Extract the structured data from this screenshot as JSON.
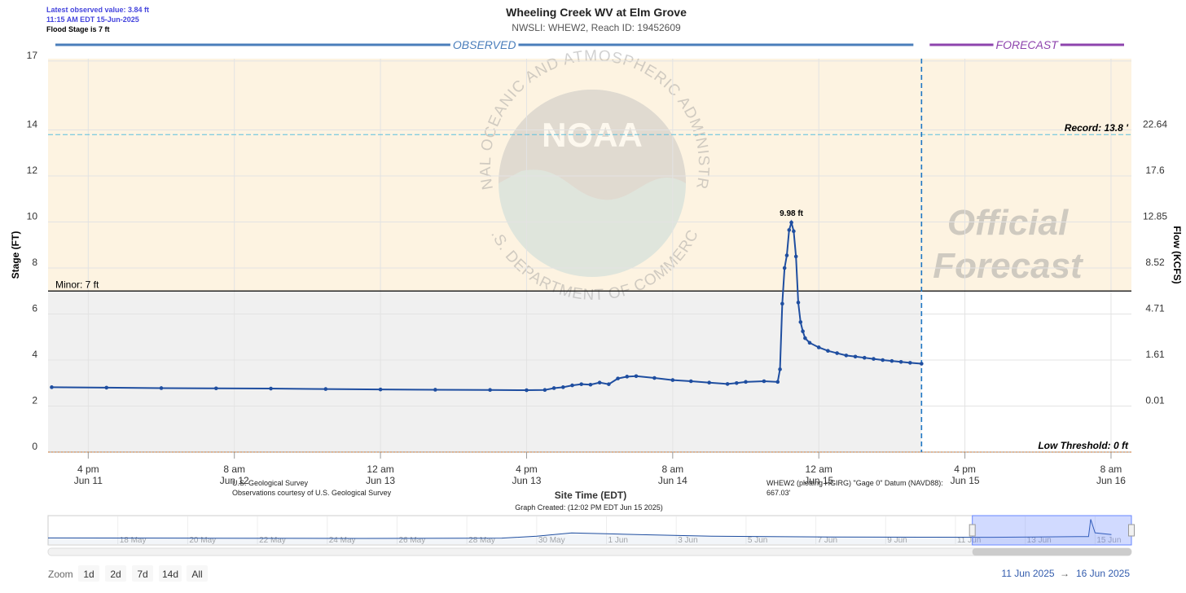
{
  "chart_data": {
    "type": "line",
    "title": "Wheeling Creek WV at Elm Grove",
    "subtitle": "NWSLI: WHEW2, Reach ID: 19452609",
    "notes": [
      "Latest observed value: 3.84 ft",
      "11:15 AM EDT 15-Jun-2025",
      "Flood Stage is 7 ft"
    ],
    "sections": {
      "observed": "OBSERVED",
      "forecast": "FORECAST"
    },
    "y_title": "Stage (FT)",
    "y2_title": "Flow (KCFS)",
    "x_title": "Site Time (EDT)",
    "xlim": [
      "2025-06-11 11:36",
      "2025-06-16 10:14"
    ],
    "xticks": [
      {
        "value": "2025-06-11 16:00",
        "label": [
          "4 pm",
          "Jun 11"
        ]
      },
      {
        "value": "2025-06-12 08:00",
        "label": [
          "8 am",
          "Jun 12"
        ]
      },
      {
        "value": "2025-06-13 00:00",
        "label": [
          "12 am",
          "Jun 13"
        ]
      },
      {
        "value": "2025-06-13 16:00",
        "label": [
          "4 pm",
          "Jun 13"
        ]
      },
      {
        "value": "2025-06-14 08:00",
        "label": [
          "8 am",
          "Jun 14"
        ]
      },
      {
        "value": "2025-06-15 00:00",
        "label": [
          "12 am",
          "Jun 15"
        ]
      },
      {
        "value": "2025-06-15 16:00",
        "label": [
          "4 pm",
          "Jun 15"
        ]
      },
      {
        "value": "2025-06-16 08:00",
        "label": [
          "8 am",
          "Jun 16"
        ]
      }
    ],
    "ylim": [
      0,
      17.1
    ],
    "yticks": [
      0,
      2,
      4,
      6,
      8,
      10,
      12,
      14,
      17
    ],
    "y2ticks": [
      0.01,
      1.61,
      4.71,
      8.52,
      12.85,
      17.6,
      22.64
    ],
    "y2tick_stages": [
      2,
      4,
      6,
      8,
      10,
      12,
      14
    ],
    "grid": true,
    "series": [
      {
        "color": "#1f4ea0",
        "x": [
          "2025-06-11 12:00",
          "2025-06-11 18:00",
          "2025-06-12 00:00",
          "2025-06-12 06:00",
          "2025-06-12 12:00",
          "2025-06-12 18:00",
          "2025-06-13 00:00",
          "2025-06-13 06:00",
          "2025-06-13 12:00",
          "2025-06-13 16:00",
          "2025-06-13 18:00",
          "2025-06-13 19:00",
          "2025-06-13 20:00",
          "2025-06-13 21:00",
          "2025-06-13 22:00",
          "2025-06-13 23:00",
          "2025-06-14 00:00",
          "2025-06-14 01:00",
          "2025-06-14 02:00",
          "2025-06-14 03:00",
          "2025-06-14 04:00",
          "2025-06-14 06:00",
          "2025-06-14 08:00",
          "2025-06-14 10:00",
          "2025-06-14 12:00",
          "2025-06-14 14:00",
          "2025-06-14 15:00",
          "2025-06-14 16:00",
          "2025-06-14 18:00",
          "2025-06-14 19:30",
          "2025-06-14 19:45",
          "2025-06-14 20:00",
          "2025-06-14 20:15",
          "2025-06-14 20:30",
          "2025-06-14 20:45",
          "2025-06-14 21:00",
          "2025-06-14 21:15",
          "2025-06-14 21:30",
          "2025-06-14 21:45",
          "2025-06-14 22:00",
          "2025-06-14 22:15",
          "2025-06-14 22:30",
          "2025-06-14 23:00",
          "2025-06-15 00:00",
          "2025-06-15 01:00",
          "2025-06-15 02:00",
          "2025-06-15 03:00",
          "2025-06-15 04:00",
          "2025-06-15 05:00",
          "2025-06-15 06:00",
          "2025-06-15 07:00",
          "2025-06-15 08:00",
          "2025-06-15 09:00",
          "2025-06-15 10:00",
          "2025-06-15 11:15"
        ],
        "values": [
          2.82,
          2.8,
          2.78,
          2.77,
          2.76,
          2.74,
          2.72,
          2.71,
          2.7,
          2.69,
          2.7,
          2.78,
          2.82,
          2.9,
          2.95,
          2.93,
          3.02,
          2.95,
          3.2,
          3.28,
          3.3,
          3.22,
          3.13,
          3.08,
          3.02,
          2.96,
          3.0,
          3.05,
          3.08,
          3.05,
          3.6,
          6.45,
          8.0,
          8.55,
          9.65,
          9.98,
          9.6,
          8.5,
          6.5,
          5.65,
          5.25,
          4.95,
          4.75,
          4.55,
          4.4,
          4.3,
          4.2,
          4.15,
          4.1,
          4.05,
          4.0,
          3.96,
          3.92,
          3.88,
          3.84
        ]
      }
    ],
    "thresholds": [
      {
        "label": "Record: 13.8 '",
        "value": 13.8,
        "color": "#5bc0de"
      },
      {
        "label": "Minor: 7 ft",
        "value": 7,
        "color": "#000000"
      },
      {
        "label": "Low Threshold: 0 ft",
        "value": 0,
        "color": "#c87533"
      }
    ],
    "annotations": [
      {
        "label": "9.98 ft",
        "value": 9.98,
        "x": "2025-06-14 21:00"
      }
    ],
    "watermark": {
      "logo": "NOAA",
      "ring_top": "NATIONAL OCEANIC AND ATMOSPHERIC ADMINISTRATION",
      "ring_bottom": "U.S. DEPARTMENT OF COMMERCE",
      "forecast": [
        "Official",
        "Forecast"
      ]
    },
    "credits": {
      "source": "U.S. Geological Survey",
      "courtesy": "Observations courtesy of U.S. Geological Survey",
      "created": "Graph Created: (12:02 PM EDT Jun 15 2025)",
      "datum": [
        "WHEW2 (plotting HGIRG) \"Gage 0\" Datum (NAVD88):",
        "667.03'"
      ]
    },
    "navigator": {
      "xlim": [
        "2025-05-16 00:00",
        "2025-06-16 01:00"
      ],
      "ylim": [
        0,
        10.5
      ],
      "ticks": [
        {
          "value": "2025-05-18",
          "label": "18 May"
        },
        {
          "value": "2025-05-20",
          "label": "20 May"
        },
        {
          "value": "2025-05-22",
          "label": "22 May"
        },
        {
          "value": "2025-05-24",
          "label": "24 May"
        },
        {
          "value": "2025-05-26",
          "label": "26 May"
        },
        {
          "value": "2025-05-28",
          "label": "28 May"
        },
        {
          "value": "2025-05-30",
          "label": "30 May"
        },
        {
          "value": "2025-06-01",
          "label": "1 Jun"
        },
        {
          "value": "2025-06-03",
          "label": "3 Jun"
        },
        {
          "value": "2025-06-05",
          "label": "5 Jun"
        },
        {
          "value": "2025-06-07",
          "label": "7 Jun"
        },
        {
          "value": "2025-06-09",
          "label": "9 Jun"
        },
        {
          "value": "2025-06-11",
          "label": "11 Jun"
        },
        {
          "value": "2025-06-13",
          "label": "13 Jun"
        },
        {
          "value": "2025-06-15",
          "label": "15 Jun"
        }
      ],
      "x": [
        "2025-05-16 00:00",
        "2025-05-20 00:00",
        "2025-05-25 00:00",
        "2025-05-29 00:00",
        "2025-05-30 00:00",
        "2025-05-31 00:00",
        "2025-06-01 00:00",
        "2025-06-02 00:00",
        "2025-06-04 00:00",
        "2025-06-07 00:00",
        "2025-06-10 00:00",
        "2025-06-12 00:00",
        "2025-06-14 12:00",
        "2025-06-14 19:30",
        "2025-06-14 21:00",
        "2025-06-15 00:00",
        "2025-06-15 11:15"
      ],
      "values": [
        2.5,
        2.4,
        2.3,
        2.4,
        3.2,
        4.5,
        4.2,
        3.8,
        3.2,
        2.9,
        2.8,
        2.75,
        3.02,
        3.05,
        9.98,
        4.55,
        3.84
      ]
    },
    "range_selector": {
      "zoom": "Zoom",
      "buttons": [
        "1d",
        "2d",
        "7d",
        "14d",
        "All"
      ],
      "from": "11 Jun 2025",
      "arrow": "→",
      "to": "16 Jun 2025"
    }
  }
}
